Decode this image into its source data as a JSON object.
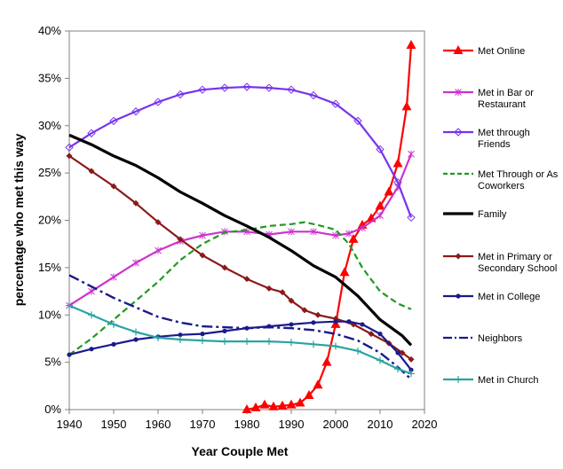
{
  "chart_data": {
    "type": "line",
    "title": "",
    "xlabel": "Year Couple Met",
    "ylabel": "percentage who met this way",
    "xlim": [
      1940,
      2020
    ],
    "ylim": [
      0,
      40
    ],
    "x_ticks": [
      "1940",
      "1950",
      "1960",
      "1970",
      "1980",
      "1990",
      "2000",
      "2010",
      "2020"
    ],
    "y_ticks": [
      "0%",
      "5%",
      "10%",
      "15%",
      "20%",
      "25%",
      "30%",
      "35%",
      "40%"
    ],
    "grid": false,
    "legend_position": "right",
    "series": [
      {
        "name": "Met Online",
        "color": "#ff0000",
        "style": "solid",
        "marker": "triangle",
        "x": [
          1980,
          1982,
          1984,
          1986,
          1988,
          1990,
          1992,
          1994,
          1996,
          1998,
          2000,
          2002,
          2004,
          2006,
          2008,
          2010,
          2012,
          2014,
          2016,
          2017
        ],
        "y": [
          0,
          0.2,
          0.5,
          0.3,
          0.4,
          0.5,
          0.7,
          1.5,
          2.6,
          5,
          9,
          14.5,
          18,
          19.5,
          20.2,
          21.5,
          23,
          26,
          32,
          38.5
        ]
      },
      {
        "name": "Met in Bar or Restaurant",
        "color": "#cc33cc",
        "style": "solid",
        "marker": "star",
        "x": [
          1940,
          1945,
          1950,
          1955,
          1960,
          1965,
          1970,
          1975,
          1980,
          1985,
          1990,
          1995,
          2000,
          2003,
          2006,
          2010,
          2014,
          2017
        ],
        "y": [
          11,
          12.5,
          14,
          15.5,
          16.8,
          17.8,
          18.4,
          18.8,
          18.8,
          18.5,
          18.8,
          18.8,
          18.4,
          18.6,
          19.2,
          20.5,
          23.5,
          27
        ]
      },
      {
        "name": "Met through Friends",
        "color": "#7733ee",
        "style": "solid",
        "marker": "diamond",
        "x": [
          1940,
          1945,
          1950,
          1955,
          1960,
          1965,
          1970,
          1975,
          1980,
          1985,
          1990,
          1995,
          2000,
          2005,
          2010,
          2014,
          2017
        ],
        "y": [
          27.7,
          29.2,
          30.5,
          31.5,
          32.5,
          33.3,
          33.8,
          34,
          34.1,
          34,
          33.8,
          33.2,
          32.3,
          30.5,
          27.5,
          24,
          20.3
        ]
      },
      {
        "name": "Met Through or As Coworkers",
        "color": "#229922",
        "style": "dashed",
        "marker": "none",
        "x": [
          1940,
          1945,
          1950,
          1955,
          1960,
          1965,
          1970,
          1975,
          1980,
          1985,
          1990,
          1993,
          1996,
          2000,
          2003,
          2006,
          2010,
          2014,
          2017
        ],
        "y": [
          5.8,
          7.5,
          9.5,
          11.5,
          13.5,
          15.8,
          17.5,
          18.7,
          19,
          19.4,
          19.6,
          19.8,
          19.5,
          19,
          17.5,
          15,
          12.5,
          11.2,
          10.6
        ]
      },
      {
        "name": "Family",
        "color": "#000000",
        "style": "solid",
        "marker": "none",
        "x": [
          1940,
          1945,
          1950,
          1955,
          1960,
          1965,
          1970,
          1975,
          1980,
          1985,
          1990,
          1995,
          2000,
          2005,
          2010,
          2015,
          2017
        ],
        "y": [
          29,
          28,
          26.8,
          25.8,
          24.5,
          23,
          21.8,
          20.5,
          19.4,
          18.2,
          16.8,
          15.2,
          14,
          12,
          9.5,
          7.8,
          6.8
        ]
      },
      {
        "name": "Met in Primary or Secondary School",
        "color": "#8b1a1a",
        "style": "solid",
        "marker": "diamond-filled",
        "x": [
          1940,
          1945,
          1950,
          1955,
          1960,
          1965,
          1970,
          1975,
          1980,
          1985,
          1988,
          1990,
          1993,
          1996,
          2000,
          2004,
          2008,
          2012,
          2015,
          2017
        ],
        "y": [
          26.8,
          25.2,
          23.6,
          21.8,
          19.8,
          18,
          16.3,
          15,
          13.8,
          12.8,
          12.4,
          11.5,
          10.5,
          10,
          9.6,
          9,
          8,
          7,
          6,
          5.3
        ]
      },
      {
        "name": "Met in College",
        "color": "#1a1a8b",
        "style": "solid",
        "marker": "circle",
        "x": [
          1940,
          1945,
          1950,
          1955,
          1960,
          1965,
          1970,
          1975,
          1980,
          1985,
          1990,
          1995,
          2000,
          2003,
          2006,
          2010,
          2014,
          2017
        ],
        "y": [
          5.8,
          6.4,
          6.9,
          7.4,
          7.7,
          7.9,
          8,
          8.3,
          8.6,
          8.8,
          9,
          9.2,
          9.3,
          9.3,
          9,
          8,
          6,
          4.2
        ]
      },
      {
        "name": "Neighbors",
        "color": "#1a1a8b",
        "style": "dashdot",
        "marker": "none",
        "x": [
          1940,
          1945,
          1950,
          1955,
          1960,
          1965,
          1970,
          1975,
          1980,
          1985,
          1990,
          1995,
          2000,
          2005,
          2010,
          2014,
          2017
        ],
        "y": [
          14.2,
          13,
          11.8,
          10.8,
          9.8,
          9.2,
          8.8,
          8.7,
          8.6,
          8.7,
          8.6,
          8.4,
          8,
          7.3,
          6,
          4.5,
          3.2
        ]
      },
      {
        "name": "Met in Church",
        "color": "#2aa3a3",
        "style": "solid",
        "marker": "plus",
        "x": [
          1940,
          1945,
          1950,
          1955,
          1960,
          1965,
          1970,
          1975,
          1980,
          1985,
          1990,
          1995,
          2000,
          2005,
          2010,
          2014,
          2017
        ],
        "y": [
          11,
          10,
          9,
          8.2,
          7.6,
          7.4,
          7.3,
          7.2,
          7.2,
          7.2,
          7.1,
          6.9,
          6.7,
          6.2,
          5.2,
          4.3,
          3.8
        ]
      }
    ]
  }
}
